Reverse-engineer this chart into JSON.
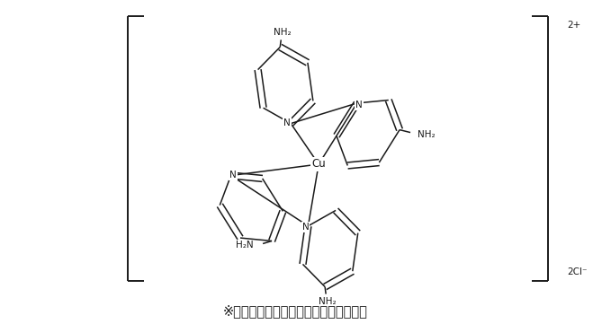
{
  "background_color": "#ffffff",
  "text_color": "#1a1a1a",
  "line_color": "#1a1a1a",
  "line_width": 1.1,
  "font_size_labels": 7.5,
  "font_size_caption": 10.5,
  "caption": "※山口東京理科大学との共同研究成果物",
  "charge_label": "2+",
  "anion_label": "2Cl⁻",
  "cu_label": "Cu"
}
